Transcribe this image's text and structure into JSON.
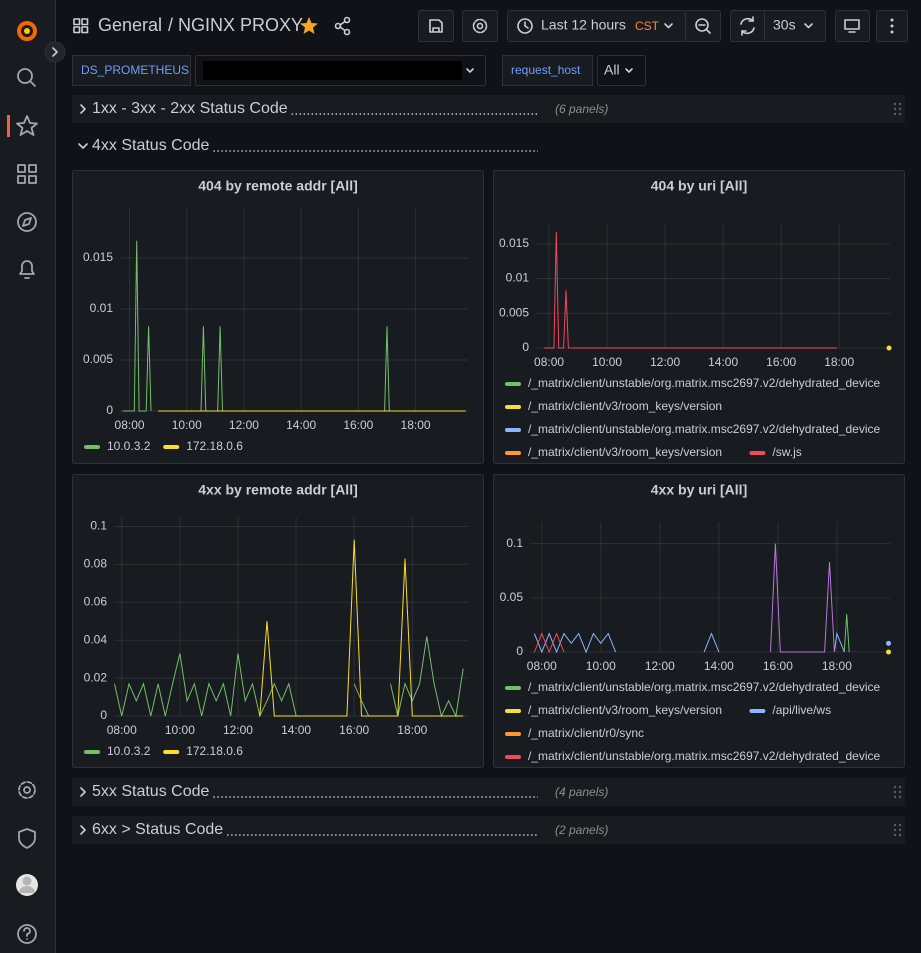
{
  "header": {
    "folder": "General",
    "title": "/ NGINX PROXY",
    "time_range": "Last 12 hours",
    "timezone": "CST",
    "refresh": "30s"
  },
  "variables": [
    {
      "label": "DS_PROMETHEUS"
    },
    {
      "label": "request_host",
      "value": "All"
    }
  ],
  "rows": [
    {
      "title": "1xx - 3xx - 2xx Status Code",
      "panel_count": "(6 panels)"
    },
    {
      "title": "4xx Status Code"
    },
    {
      "title": "5xx Status Code",
      "panel_count": "(4 panels)"
    },
    {
      "title": "6xx > Status Code",
      "panel_count": "(2 panels)"
    }
  ],
  "chart_data": [
    {
      "type": "line",
      "title": "404 by remote addr [All]",
      "grid": true,
      "legend": "bottom",
      "xlim": [
        "07:40",
        "19:50"
      ],
      "xticks": [
        "08:00",
        "10:00",
        "12:00",
        "14:00",
        "16:00",
        "18:00"
      ],
      "ylim": [
        0,
        0.02
      ],
      "yticks": [
        0,
        0.005,
        0.01,
        0.015
      ],
      "x": [
        "07:45",
        "08:10",
        "08:15",
        "08:20",
        "08:35",
        "08:40",
        "08:45",
        "09:00",
        "10:30",
        "10:35",
        "10:40",
        "11:00",
        "11:05",
        "11:10",
        "11:15",
        "12:00",
        "16:55",
        "17:00",
        "17:05",
        "17:30",
        "19:35",
        "19:45"
      ],
      "series": [
        {
          "name": "10.0.3.2",
          "color": "#73bf69",
          "values": [
            0,
            0,
            0.0167,
            0,
            0,
            0.0083,
            0,
            null,
            0,
            0.0083,
            0,
            null,
            0,
            0.0083,
            0,
            null,
            0,
            0.0083,
            0,
            null,
            null,
            null
          ]
        },
        {
          "name": "172.18.0.6",
          "color": "#fade2a",
          "values": [
            null,
            null,
            null,
            null,
            null,
            null,
            null,
            0,
            0,
            0,
            0,
            0,
            0,
            0,
            0,
            0,
            0,
            0,
            0,
            0,
            0,
            0
          ]
        }
      ]
    },
    {
      "type": "line",
      "title": "404 by uri [All]",
      "grid": true,
      "legend": "bottom",
      "xlim": [
        "07:33",
        "19:45"
      ],
      "xticks": [
        "08:00",
        "10:00",
        "12:00",
        "14:00",
        "16:00",
        "18:00"
      ],
      "ylim": [
        0,
        0.018
      ],
      "yticks": [
        0,
        0.005,
        0.01,
        0.015
      ],
      "x": [
        "07:50",
        "08:10",
        "08:15",
        "08:20",
        "08:30",
        "08:35",
        "08:40",
        "09:00",
        "17:55",
        "19:43"
      ],
      "series": [
        {
          "name": "/_matrix/client/unstable/org.matrix.msc2697.v2/dehydrated_device",
          "color": "#73bf69",
          "values": [
            null,
            null,
            null,
            null,
            null,
            null,
            null,
            null,
            null,
            null
          ]
        },
        {
          "name": "/_matrix/client/v3/room_keys/version",
          "color": "#fade2a",
          "values": [
            null,
            null,
            null,
            null,
            null,
            null,
            null,
            null,
            null,
            0
          ]
        },
        {
          "name": "/_matrix/client/unstable/org.matrix.msc2697.v2/dehydrated_device",
          "color": "#8ab8ff",
          "values": [
            null,
            null,
            null,
            null,
            null,
            null,
            null,
            null,
            null,
            null
          ]
        },
        {
          "name": "/_matrix/client/v3/room_keys/version",
          "color": "#ff9830",
          "values": [
            null,
            null,
            null,
            null,
            null,
            null,
            null,
            null,
            null,
            null
          ]
        },
        {
          "name": "/sw.js",
          "color": "#f2495c",
          "values": [
            0,
            0,
            0.0167,
            0,
            0,
            0.0083,
            0,
            0,
            0,
            null
          ]
        }
      ]
    },
    {
      "type": "line",
      "title": "4xx by remote addr [All]",
      "grid": true,
      "legend": "bottom",
      "xlim": [
        "07:44",
        "19:55"
      ],
      "xticks": [
        "08:00",
        "10:00",
        "12:00",
        "14:00",
        "16:00",
        "18:00"
      ],
      "ylim": [
        0,
        0.105
      ],
      "yticks": [
        0,
        0.02,
        0.04,
        0.06,
        0.08,
        0.1
      ],
      "x": [
        "07:45",
        "08:00",
        "08:15",
        "08:30",
        "08:45",
        "09:00",
        "09:15",
        "09:30",
        "09:45",
        "10:00",
        "10:15",
        "10:30",
        "10:45",
        "11:00",
        "11:15",
        "11:30",
        "11:45",
        "12:00",
        "12:15",
        "12:30",
        "12:45",
        "13:00",
        "13:15",
        "13:30",
        "13:45",
        "14:00",
        "14:15",
        "14:30",
        "14:45",
        "15:00",
        "15:15",
        "15:30",
        "15:45",
        "16:00",
        "16:15",
        "16:30",
        "16:45",
        "17:00",
        "17:15",
        "17:30",
        "17:45",
        "18:00",
        "18:15",
        "18:30",
        "18:45",
        "19:00",
        "19:15",
        "19:30",
        "19:45"
      ],
      "series": [
        {
          "name": "10.0.3.2",
          "color": "#73bf69",
          "values": [
            0.017,
            0,
            0.017,
            0.008,
            0.017,
            0,
            0.017,
            0,
            0.017,
            0.033,
            0.008,
            0.017,
            0,
            0.017,
            0.008,
            0.017,
            0,
            0.033,
            0.008,
            0.017,
            0,
            0.008,
            0.017,
            0.008,
            0.017,
            0,
            null,
            null,
            null,
            null,
            null,
            null,
            null,
            0.017,
            0.008,
            0,
            null,
            null,
            0.017,
            0,
            0.017,
            0.008,
            0.017,
            0.042,
            0.017,
            0,
            0.008,
            0,
            0.025
          ]
        },
        {
          "name": "172.18.0.6",
          "color": "#fade2a",
          "values": [
            null,
            null,
            null,
            null,
            null,
            null,
            null,
            null,
            null,
            null,
            null,
            null,
            null,
            null,
            null,
            null,
            null,
            null,
            null,
            null,
            0,
            0.05,
            0,
            0,
            0,
            0,
            0,
            0,
            0,
            0,
            0,
            0,
            0,
            0.093,
            0,
            0,
            0,
            0,
            0,
            0,
            0.083,
            0,
            0,
            0,
            0,
            0,
            0,
            0,
            0
          ]
        }
      ]
    },
    {
      "type": "line",
      "title": "4xx by uri [All]",
      "grid": true,
      "legend": "bottom",
      "xlim": [
        "07:36",
        "19:48"
      ],
      "xticks": [
        "08:00",
        "10:00",
        "12:00",
        "14:00",
        "16:00",
        "18:00"
      ],
      "ylim": [
        0,
        0.12
      ],
      "yticks": [
        0,
        0.05,
        0.1
      ],
      "x": [
        "07:45",
        "08:00",
        "08:15",
        "08:30",
        "08:45",
        "09:00",
        "09:15",
        "09:30",
        "09:45",
        "10:00",
        "10:15",
        "10:30",
        "10:45",
        "13:30",
        "13:45",
        "14:00",
        "14:15",
        "15:45",
        "15:55",
        "16:05",
        "17:35",
        "17:45",
        "17:55",
        "18:00",
        "18:15",
        "18:20",
        "18:25",
        "18:45",
        "19:45"
      ],
      "series": [
        {
          "name": "/_matrix/client/unstable/org.matrix.msc2697.v2/dehydrated_device",
          "color": "#73bf69",
          "values": [
            null,
            null,
            null,
            null,
            null,
            null,
            null,
            null,
            null,
            null,
            null,
            null,
            null,
            null,
            null,
            null,
            null,
            null,
            null,
            null,
            null,
            null,
            null,
            null,
            0,
            0.035,
            0,
            null,
            null
          ]
        },
        {
          "name": "/_matrix/client/v3/room_keys/version",
          "color": "#fade2a",
          "values": [
            null,
            null,
            null,
            null,
            null,
            null,
            null,
            null,
            null,
            null,
            null,
            null,
            null,
            null,
            null,
            null,
            null,
            null,
            null,
            null,
            null,
            null,
            null,
            null,
            null,
            null,
            null,
            null,
            0
          ]
        },
        {
          "name": "/api/live/ws",
          "color": "#8ab8ff",
          "values": [
            0.017,
            0,
            0.017,
            0,
            0.017,
            0.008,
            0.017,
            0,
            0.017,
            0.008,
            0.017,
            0,
            null,
            0,
            0.017,
            0,
            null,
            null,
            null,
            null,
            null,
            null,
            0,
            0.017,
            0,
            null,
            null,
            null,
            0.008
          ]
        },
        {
          "name": "/_matrix/client/r0/sync",
          "color": "#ff9830",
          "values": [
            null,
            null,
            null,
            null,
            null,
            null,
            null,
            null,
            null,
            null,
            null,
            null,
            null,
            null,
            null,
            null,
            null,
            null,
            null,
            null,
            null,
            null,
            null,
            null,
            null,
            null,
            null,
            null,
            null
          ]
        },
        {
          "name": "/_matrix/client/unstable/org.matrix.msc2697.v2/dehydrated_device",
          "color": "#f2495c",
          "values": [
            0,
            0.017,
            0,
            0.017,
            0,
            null,
            null,
            null,
            null,
            null,
            null,
            null,
            null,
            null,
            null,
            null,
            null,
            null,
            null,
            null,
            null,
            null,
            null,
            null,
            null,
            null,
            null,
            null,
            null
          ]
        },
        {
          "color": "#b877d9",
          "values": [
            null,
            null,
            null,
            null,
            null,
            null,
            null,
            null,
            null,
            null,
            null,
            null,
            null,
            null,
            null,
            null,
            null,
            0,
            0.1,
            0,
            0,
            0.083,
            0,
            null,
            null,
            null,
            null,
            null,
            null
          ]
        }
      ]
    }
  ]
}
